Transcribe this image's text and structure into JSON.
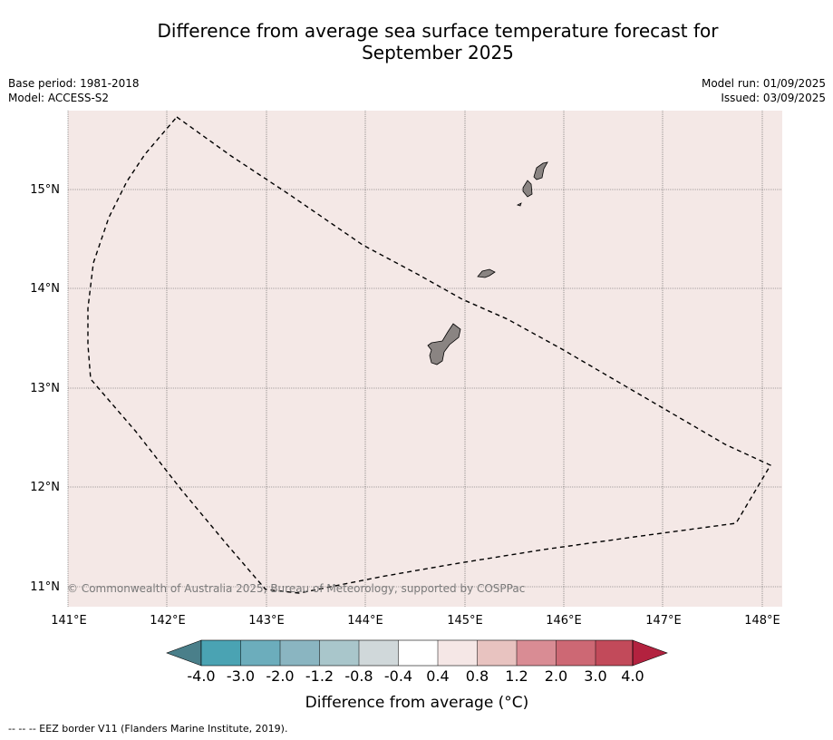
{
  "title_line1": "Difference from average sea surface temperature forecast for",
  "title_line2": "September 2025",
  "base_period": "Base period: 1981-2018",
  "model": "Model: ACCESS-S2",
  "model_run": "Model run: 01/09/2025",
  "issued": "Issued: 03/09/2025",
  "copyright": "© Commonwealth of Australia 2025, Bureau of Meteorology, supported by COSPPac",
  "footnote": "--  --  -- EEZ border V11 (Flanders Marine Institute, 2019).",
  "colors": {
    "map_fill": "#f4e8e6",
    "land": "#8a8482",
    "gridline": "#555555"
  },
  "longitude_ticks": [
    "141°E",
    "142°E",
    "143°E",
    "144°E",
    "145°E",
    "146°E",
    "147°E",
    "148°E"
  ],
  "latitude_ticks": [
    "15°N",
    "14°N",
    "13°N",
    "12°N",
    "11°N"
  ],
  "colorbar": {
    "label": "Difference from average (°C)",
    "tick_labels": [
      "-4.0",
      "-3.0",
      "-2.0",
      "-1.2",
      "-0.8",
      "-0.4",
      "0.4",
      "0.8",
      "1.2",
      "2.0",
      "3.0",
      "4.0"
    ],
    "colors": [
      "#4a7f8a",
      "#4aa3b3",
      "#6cadbc",
      "#8ab5c1",
      "#a9c6cb",
      "#d0d8da",
      "#ffffff",
      "#f5e7e6",
      "#e8c3c0",
      "#d98c94",
      "#cd6874",
      "#c24a5a",
      "#b3223f"
    ]
  }
}
